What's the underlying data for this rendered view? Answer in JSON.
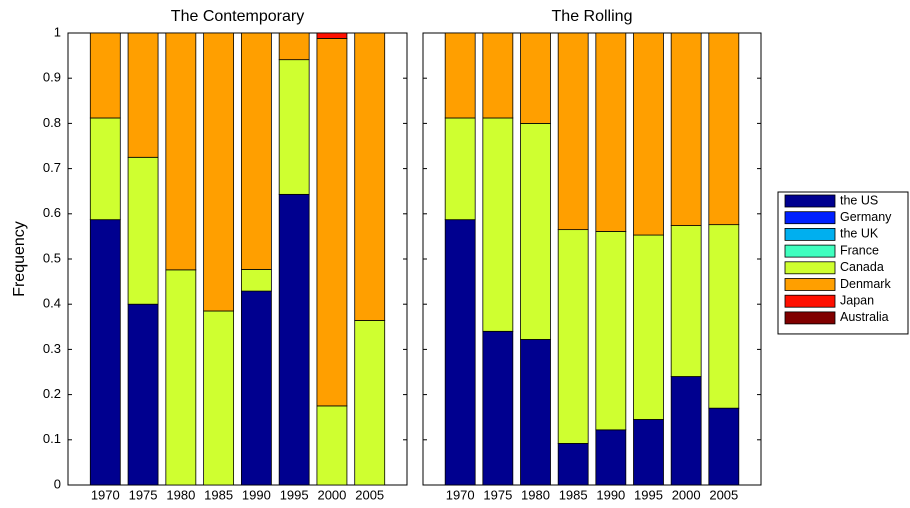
{
  "chart_data": {
    "type": "bar",
    "stacked": true,
    "ylabel": "Frequency",
    "categories": [
      "1970",
      "1975",
      "1980",
      "1985",
      "1990",
      "1995",
      "2000",
      "2005"
    ],
    "ylim": [
      0,
      1
    ],
    "yticks": [
      0,
      0.1,
      0.2,
      0.3,
      0.4,
      0.5,
      0.6,
      0.7,
      0.8,
      0.9,
      1
    ],
    "series": [
      {
        "name": "the US",
        "color": "#00008f"
      },
      {
        "name": "Germany",
        "color": "#0020ff"
      },
      {
        "name": "the UK",
        "color": "#00afef"
      },
      {
        "name": "France",
        "color": "#40ffbf"
      },
      {
        "name": "Canada",
        "color": "#cfff30"
      },
      {
        "name": "Denmark",
        "color": "#ff9f00"
      },
      {
        "name": "Japan",
        "color": "#ff1000"
      },
      {
        "name": "Australia",
        "color": "#800000"
      }
    ],
    "panels": [
      {
        "title": "The Contemporary",
        "values": [
          [
            0.587,
            0.4,
            0,
            0,
            0.429,
            0.643,
            0,
            0
          ],
          [
            0,
            0,
            0,
            0,
            0,
            0,
            0,
            0
          ],
          [
            0,
            0,
            0,
            0,
            0,
            0,
            0,
            0
          ],
          [
            0,
            0,
            0,
            0,
            0,
            0,
            0,
            0
          ],
          [
            0.225,
            0.325,
            0.476,
            0.385,
            0.048,
            0.298,
            0.175,
            0.364
          ],
          [
            0.188,
            0.275,
            0.524,
            0.615,
            0.523,
            0.059,
            0.813,
            0.636
          ],
          [
            0,
            0,
            0,
            0,
            0,
            0,
            0.012,
            0
          ],
          [
            0,
            0,
            0,
            0,
            0,
            0,
            0,
            0
          ]
        ]
      },
      {
        "title": "The Rolling",
        "values": [
          [
            0.587,
            0.34,
            0.322,
            0.092,
            0.122,
            0.145,
            0.24,
            0.17
          ],
          [
            0,
            0,
            0,
            0,
            0,
            0,
            0,
            0
          ],
          [
            0,
            0,
            0,
            0,
            0,
            0,
            0,
            0
          ],
          [
            0,
            0,
            0,
            0,
            0,
            0,
            0,
            0
          ],
          [
            0.225,
            0.472,
            0.478,
            0.473,
            0.439,
            0.408,
            0.334,
            0.406
          ],
          [
            0.188,
            0.188,
            0.2,
            0.435,
            0.439,
            0.447,
            0.426,
            0.424
          ],
          [
            0,
            0,
            0,
            0,
            0,
            0,
            0,
            0
          ],
          [
            0,
            0,
            0,
            0,
            0,
            0,
            0,
            0
          ]
        ]
      }
    ]
  }
}
